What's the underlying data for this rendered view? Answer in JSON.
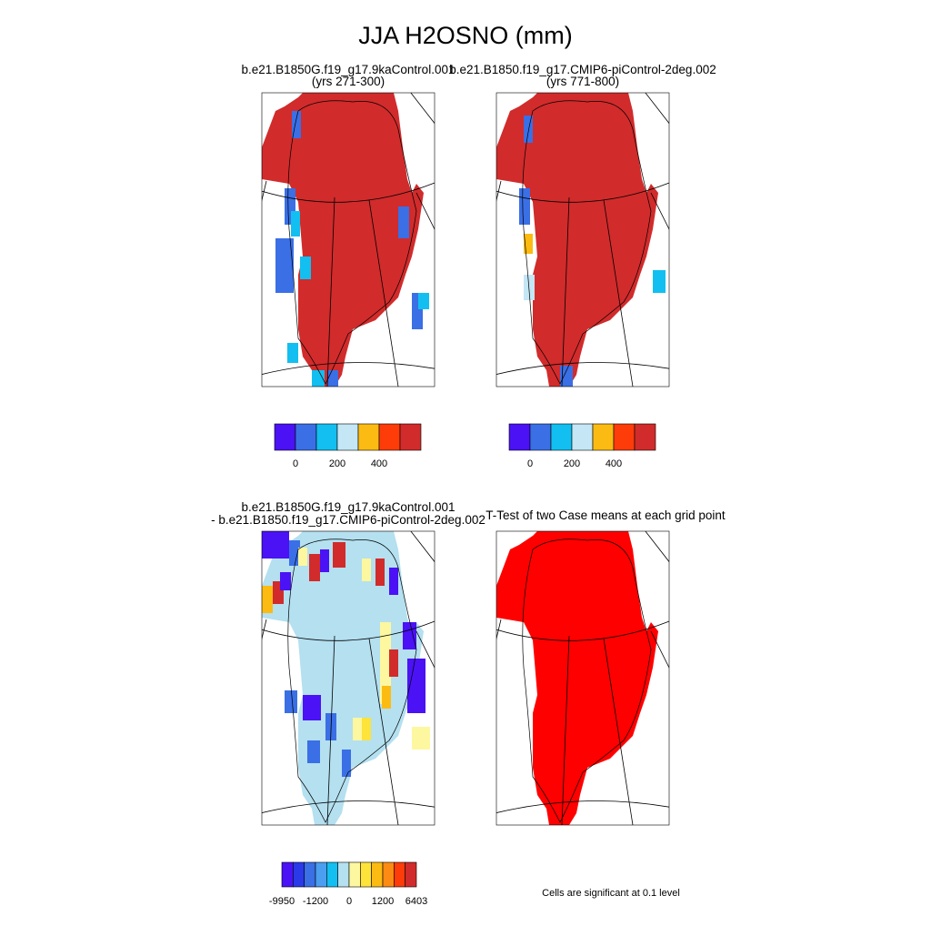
{
  "title": "JJA H2OSNO (mm)",
  "panels": [
    {
      "title_lines": [
        "b.e21.B1850G.f19_g17.9kaControl.001",
        "(yrs 271-300)"
      ]
    },
    {
      "title_lines": [
        "b.e21.B1850.f19_g17.CMIP6-piControl-2deg.002",
        "(yrs 771-800)"
      ]
    },
    {
      "title_lines": [
        "b.e21.B1850G.f19_g17.9kaControl.001",
        "- b.e21.B1850.f19_g17.CMIP6-piControl-2deg.002"
      ]
    },
    {
      "title_lines": [
        "T-Test of two Case means at each grid point"
      ]
    }
  ],
  "colorbars": [
    {
      "colors": [
        "#4a12f5",
        "#3a6fe6",
        "#12bff0",
        "#c4e6f5",
        "#fcbb12",
        "#fd3c0a",
        "#d12b2b"
      ],
      "labels": [
        0,
        200,
        400
      ]
    },
    {
      "colors": [
        "#4a12f5",
        "#3a6fe6",
        "#12bff0",
        "#c4e6f5",
        "#fcbb12",
        "#fd3c0a",
        "#d12b2b"
      ],
      "labels": [
        0,
        200,
        400
      ]
    },
    {
      "colors": [
        "#4a12f5",
        "#2a3ae8",
        "#3a6fe6",
        "#4b9ef0",
        "#12bff0",
        "#b4e0f0",
        "#fdf7a0",
        "#fde33a",
        "#fcbb12",
        "#fd8a12",
        "#fd3c0a",
        "#d12b2b"
      ],
      "labels": [
        -9950,
        -1200,
        0,
        1200,
        6403
      ]
    }
  ],
  "note": "Cells are significant at 0.1 level"
}
